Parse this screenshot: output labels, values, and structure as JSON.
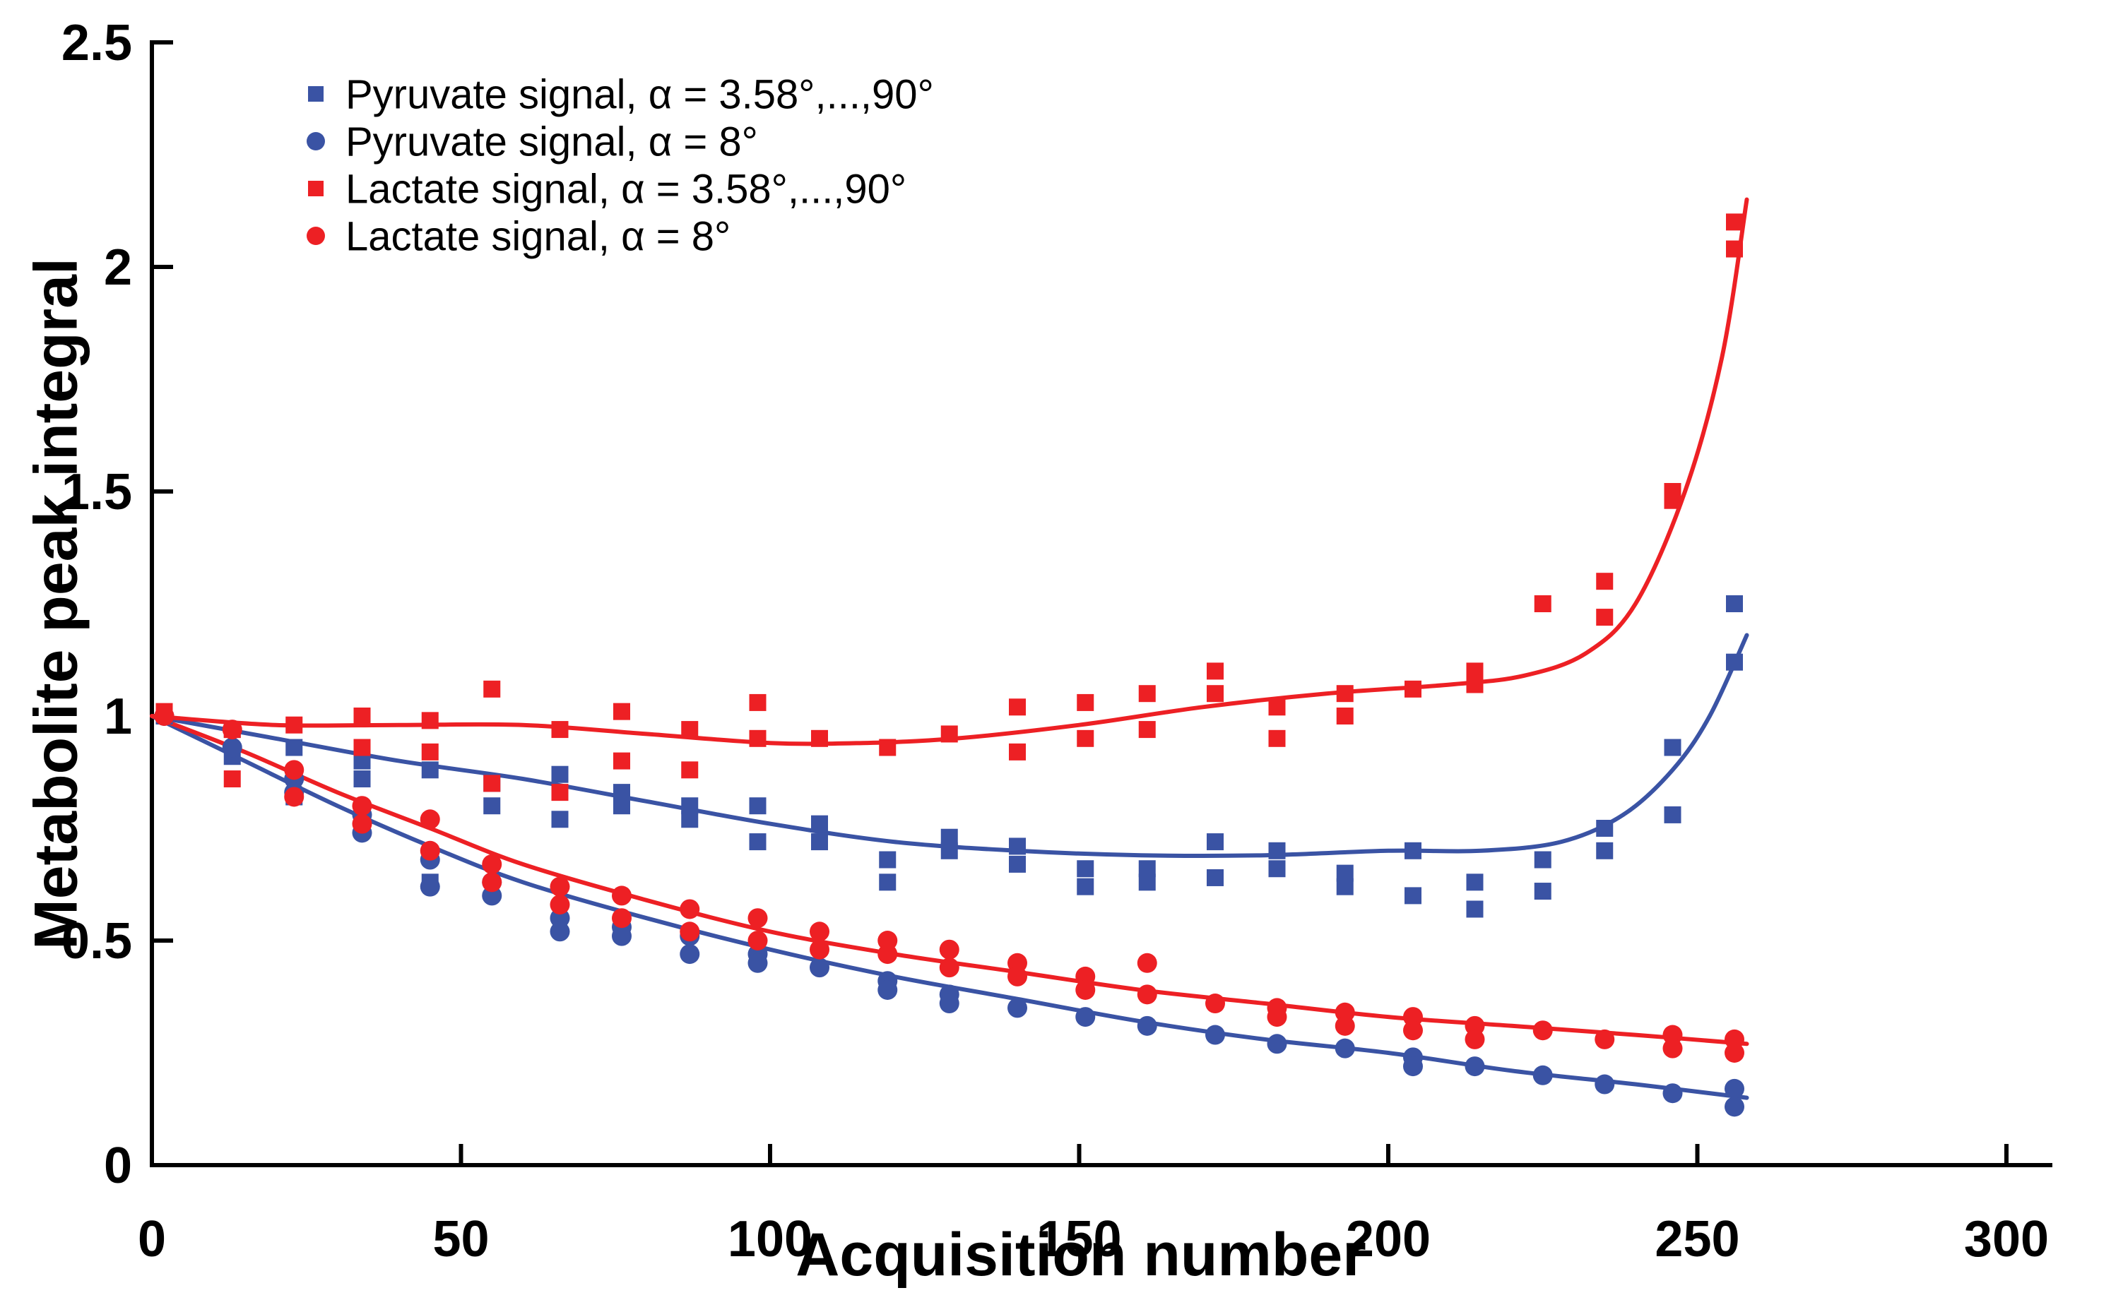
{
  "figure": {
    "background": "#ffffff",
    "axis_color": "#000000",
    "blue": "#3a53a4",
    "red": "#ed2024"
  },
  "chart_data": {
    "type": "scatter",
    "title": "",
    "xlabel": "Acquisition number",
    "ylabel": "Metabolite peak integral",
    "xlim": [
      0,
      300
    ],
    "ylim": [
      0,
      2.5
    ],
    "grid": false,
    "legend_position": "top-left-inside",
    "xticks": [
      0,
      50,
      100,
      150,
      200,
      250,
      300
    ],
    "xtick_labels": [
      "0",
      "50",
      "100",
      "150",
      "200",
      "250",
      "300"
    ],
    "yticks": [
      0,
      0.5,
      1,
      1.5,
      2,
      2.5
    ],
    "ytick_labels": [
      "0",
      "0.5",
      "1",
      "1.5",
      "2",
      "2.5"
    ],
    "series": [
      {
        "id": "pyruvate-vfa",
        "name": "Pyruvate signal, α = 3.58°,...,90°",
        "marker": "square",
        "color": "#3a53a4",
        "points": [
          [
            2,
            1.0
          ],
          [
            13,
            0.97
          ],
          [
            13,
            0.91
          ],
          [
            23,
            0.93
          ],
          [
            23,
            0.82
          ],
          [
            34,
            0.9
          ],
          [
            34,
            0.86
          ],
          [
            45,
            0.88
          ],
          [
            45,
            0.63
          ],
          [
            55,
            0.85
          ],
          [
            55,
            0.8
          ],
          [
            66,
            0.87
          ],
          [
            66,
            0.77
          ],
          [
            76,
            0.83
          ],
          [
            76,
            0.8
          ],
          [
            87,
            0.8
          ],
          [
            87,
            0.77
          ],
          [
            98,
            0.8
          ],
          [
            98,
            0.72
          ],
          [
            108,
            0.76
          ],
          [
            108,
            0.72
          ],
          [
            119,
            0.68
          ],
          [
            119,
            0.63
          ],
          [
            129,
            0.73
          ],
          [
            129,
            0.7
          ],
          [
            140,
            0.71
          ],
          [
            140,
            0.67
          ],
          [
            151,
            0.66
          ],
          [
            151,
            0.62
          ],
          [
            161,
            0.66
          ],
          [
            161,
            0.63
          ],
          [
            172,
            0.72
          ],
          [
            172,
            0.64
          ],
          [
            182,
            0.7
          ],
          [
            182,
            0.66
          ],
          [
            193,
            0.65
          ],
          [
            193,
            0.62
          ],
          [
            204,
            0.7
          ],
          [
            204,
            0.6
          ],
          [
            214,
            0.63
          ],
          [
            214,
            0.57
          ],
          [
            225,
            0.68
          ],
          [
            225,
            0.61
          ],
          [
            235,
            0.75
          ],
          [
            235,
            0.7
          ],
          [
            246,
            0.93
          ],
          [
            246,
            0.78
          ],
          [
            256,
            1.25
          ],
          [
            256,
            1.12
          ]
        ],
        "fit": [
          [
            0,
            1.0
          ],
          [
            20,
            0.95
          ],
          [
            40,
            0.9
          ],
          [
            60,
            0.86
          ],
          [
            80,
            0.81
          ],
          [
            100,
            0.76
          ],
          [
            120,
            0.72
          ],
          [
            140,
            0.7
          ],
          [
            160,
            0.69
          ],
          [
            180,
            0.69
          ],
          [
            200,
            0.7
          ],
          [
            215,
            0.7
          ],
          [
            228,
            0.72
          ],
          [
            238,
            0.78
          ],
          [
            246,
            0.88
          ],
          [
            252,
            1.0
          ],
          [
            258,
            1.18
          ]
        ]
      },
      {
        "id": "pyruvate-8",
        "name": "Pyruvate signal, α = 8°",
        "marker": "circle",
        "color": "#3a53a4",
        "points": [
          [
            2,
            1.0
          ],
          [
            13,
            0.93
          ],
          [
            23,
            0.86
          ],
          [
            23,
            0.83
          ],
          [
            34,
            0.78
          ],
          [
            34,
            0.74
          ],
          [
            45,
            0.68
          ],
          [
            45,
            0.62
          ],
          [
            55,
            0.63
          ],
          [
            55,
            0.6
          ],
          [
            66,
            0.55
          ],
          [
            66,
            0.52
          ],
          [
            76,
            0.53
          ],
          [
            76,
            0.51
          ],
          [
            87,
            0.51
          ],
          [
            87,
            0.47
          ],
          [
            98,
            0.47
          ],
          [
            98,
            0.45
          ],
          [
            108,
            0.44
          ],
          [
            119,
            0.41
          ],
          [
            119,
            0.39
          ],
          [
            129,
            0.38
          ],
          [
            129,
            0.36
          ],
          [
            140,
            0.35
          ],
          [
            151,
            0.33
          ],
          [
            161,
            0.31
          ],
          [
            172,
            0.29
          ],
          [
            182,
            0.27
          ],
          [
            193,
            0.26
          ],
          [
            204,
            0.24
          ],
          [
            204,
            0.22
          ],
          [
            214,
            0.22
          ],
          [
            225,
            0.2
          ],
          [
            235,
            0.18
          ],
          [
            246,
            0.16
          ],
          [
            256,
            0.17
          ],
          [
            256,
            0.13
          ]
        ],
        "fit": [
          [
            0,
            1.0
          ],
          [
            15,
            0.9
          ],
          [
            30,
            0.8
          ],
          [
            45,
            0.71
          ],
          [
            60,
            0.63
          ],
          [
            80,
            0.55
          ],
          [
            100,
            0.48
          ],
          [
            120,
            0.42
          ],
          [
            140,
            0.37
          ],
          [
            160,
            0.32
          ],
          [
            180,
            0.28
          ],
          [
            200,
            0.25
          ],
          [
            220,
            0.21
          ],
          [
            240,
            0.18
          ],
          [
            258,
            0.15
          ]
        ]
      },
      {
        "id": "lactate-vfa",
        "name": "Lactate signal,  α = 3.58°,...,90°",
        "marker": "square",
        "color": "#ed2024",
        "points": [
          [
            2,
            1.01
          ],
          [
            13,
            0.97
          ],
          [
            13,
            0.86
          ],
          [
            23,
            0.98
          ],
          [
            34,
            1.0
          ],
          [
            34,
            0.93
          ],
          [
            45,
            0.99
          ],
          [
            45,
            0.92
          ],
          [
            55,
            1.06
          ],
          [
            55,
            0.85
          ],
          [
            66,
            0.97
          ],
          [
            66,
            0.83
          ],
          [
            76,
            1.01
          ],
          [
            76,
            0.9
          ],
          [
            87,
            0.97
          ],
          [
            87,
            0.88
          ],
          [
            98,
            1.03
          ],
          [
            98,
            0.95
          ],
          [
            108,
            0.95
          ],
          [
            119,
            0.93
          ],
          [
            129,
            0.96
          ],
          [
            140,
            1.02
          ],
          [
            140,
            0.92
          ],
          [
            151,
            1.03
          ],
          [
            151,
            0.95
          ],
          [
            161,
            1.05
          ],
          [
            161,
            0.97
          ],
          [
            172,
            1.1
          ],
          [
            172,
            1.05
          ],
          [
            182,
            1.02
          ],
          [
            182,
            0.95
          ],
          [
            193,
            1.05
          ],
          [
            193,
            1.0
          ],
          [
            204,
            1.06
          ],
          [
            214,
            1.1
          ],
          [
            214,
            1.07
          ],
          [
            225,
            1.25
          ],
          [
            235,
            1.3
          ],
          [
            235,
            1.22
          ],
          [
            246,
            1.5
          ],
          [
            246,
            1.48
          ],
          [
            256,
            2.1
          ],
          [
            256,
            2.04
          ]
        ],
        "fit": [
          [
            0,
            1.0
          ],
          [
            20,
            0.98
          ],
          [
            40,
            0.98
          ],
          [
            60,
            0.98
          ],
          [
            80,
            0.96
          ],
          [
            100,
            0.94
          ],
          [
            115,
            0.94
          ],
          [
            130,
            0.95
          ],
          [
            150,
            0.98
          ],
          [
            170,
            1.02
          ],
          [
            190,
            1.05
          ],
          [
            210,
            1.07
          ],
          [
            222,
            1.09
          ],
          [
            232,
            1.14
          ],
          [
            240,
            1.25
          ],
          [
            248,
            1.5
          ],
          [
            254,
            1.8
          ],
          [
            258,
            2.15
          ]
        ]
      },
      {
        "id": "lactate-8",
        "name": "Lactate signal, α = 8°",
        "marker": "circle",
        "color": "#ed2024",
        "points": [
          [
            2,
            1.0
          ],
          [
            13,
            0.97
          ],
          [
            23,
            0.88
          ],
          [
            23,
            0.82
          ],
          [
            34,
            0.8
          ],
          [
            34,
            0.76
          ],
          [
            45,
            0.77
          ],
          [
            45,
            0.7
          ],
          [
            55,
            0.67
          ],
          [
            55,
            0.63
          ],
          [
            66,
            0.62
          ],
          [
            66,
            0.58
          ],
          [
            76,
            0.6
          ],
          [
            76,
            0.55
          ],
          [
            87,
            0.57
          ],
          [
            87,
            0.52
          ],
          [
            98,
            0.55
          ],
          [
            98,
            0.5
          ],
          [
            108,
            0.52
          ],
          [
            108,
            0.48
          ],
          [
            119,
            0.5
          ],
          [
            119,
            0.47
          ],
          [
            129,
            0.48
          ],
          [
            129,
            0.44
          ],
          [
            140,
            0.45
          ],
          [
            140,
            0.42
          ],
          [
            151,
            0.42
          ],
          [
            151,
            0.39
          ],
          [
            161,
            0.45
          ],
          [
            161,
            0.38
          ],
          [
            172,
            0.36
          ],
          [
            182,
            0.35
          ],
          [
            182,
            0.33
          ],
          [
            193,
            0.34
          ],
          [
            193,
            0.31
          ],
          [
            204,
            0.33
          ],
          [
            204,
            0.3
          ],
          [
            214,
            0.31
          ],
          [
            214,
            0.28
          ],
          [
            225,
            0.3
          ],
          [
            235,
            0.28
          ],
          [
            246,
            0.29
          ],
          [
            246,
            0.26
          ],
          [
            256,
            0.28
          ],
          [
            256,
            0.25
          ]
        ],
        "fit": [
          [
            0,
            1.0
          ],
          [
            15,
            0.92
          ],
          [
            30,
            0.83
          ],
          [
            45,
            0.75
          ],
          [
            60,
            0.67
          ],
          [
            80,
            0.59
          ],
          [
            100,
            0.52
          ],
          [
            120,
            0.47
          ],
          [
            140,
            0.43
          ],
          [
            160,
            0.39
          ],
          [
            180,
            0.36
          ],
          [
            200,
            0.33
          ],
          [
            220,
            0.31
          ],
          [
            240,
            0.29
          ],
          [
            258,
            0.27
          ]
        ]
      }
    ]
  }
}
